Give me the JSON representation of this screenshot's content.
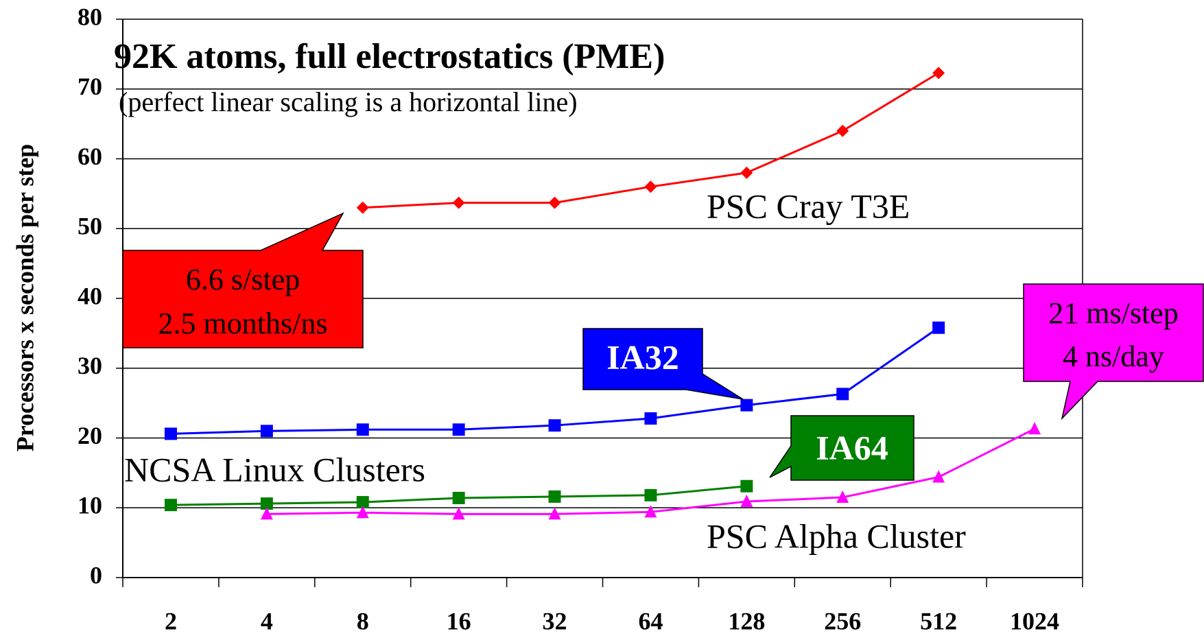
{
  "chart_data": {
    "type": "line",
    "title": "92K atoms, full electrostatics (PME)",
    "subtitle": "(perfect linear scaling is a horizontal line)",
    "y_label": "Processors x seconds per step",
    "categories": [
      "2",
      "4",
      "8",
      "16",
      "32",
      "64",
      "128",
      "256",
      "512",
      "1024"
    ],
    "series": [
      {
        "name": "PSC Cray T3E",
        "color": "#ff0000",
        "marker": "diamond",
        "values": [
          null,
          null,
          53,
          53.7,
          53.7,
          56,
          58,
          64,
          72.3,
          null
        ]
      },
      {
        "name": "IA32",
        "color": "#0000ff",
        "marker": "square",
        "values": [
          20.6,
          21,
          21.2,
          21.2,
          21.8,
          22.8,
          24.7,
          26.3,
          35.8,
          null
        ]
      },
      {
        "name": "IA64",
        "color": "#008000",
        "marker": "square",
        "values": [
          10.4,
          10.6,
          10.8,
          11.4,
          11.6,
          11.8,
          13.1,
          null,
          null,
          null
        ]
      },
      {
        "name": "PSC Alpha Cluster",
        "color": "#ff00ff",
        "marker": "triangle",
        "values": [
          null,
          9.1,
          9.3,
          9.1,
          9.1,
          9.4,
          10.9,
          11.5,
          14.4,
          21.3
        ]
      }
    ],
    "annotations": [
      "NCSA Linux Clusters",
      "6.6 s/step",
      "2.5 months/ns",
      "21 ms/step",
      "4 ns/day"
    ],
    "ylim": [
      0,
      80
    ],
    "yticks": [
      0,
      10,
      20,
      30,
      40,
      50,
      60,
      70,
      80
    ],
    "grid": true
  }
}
